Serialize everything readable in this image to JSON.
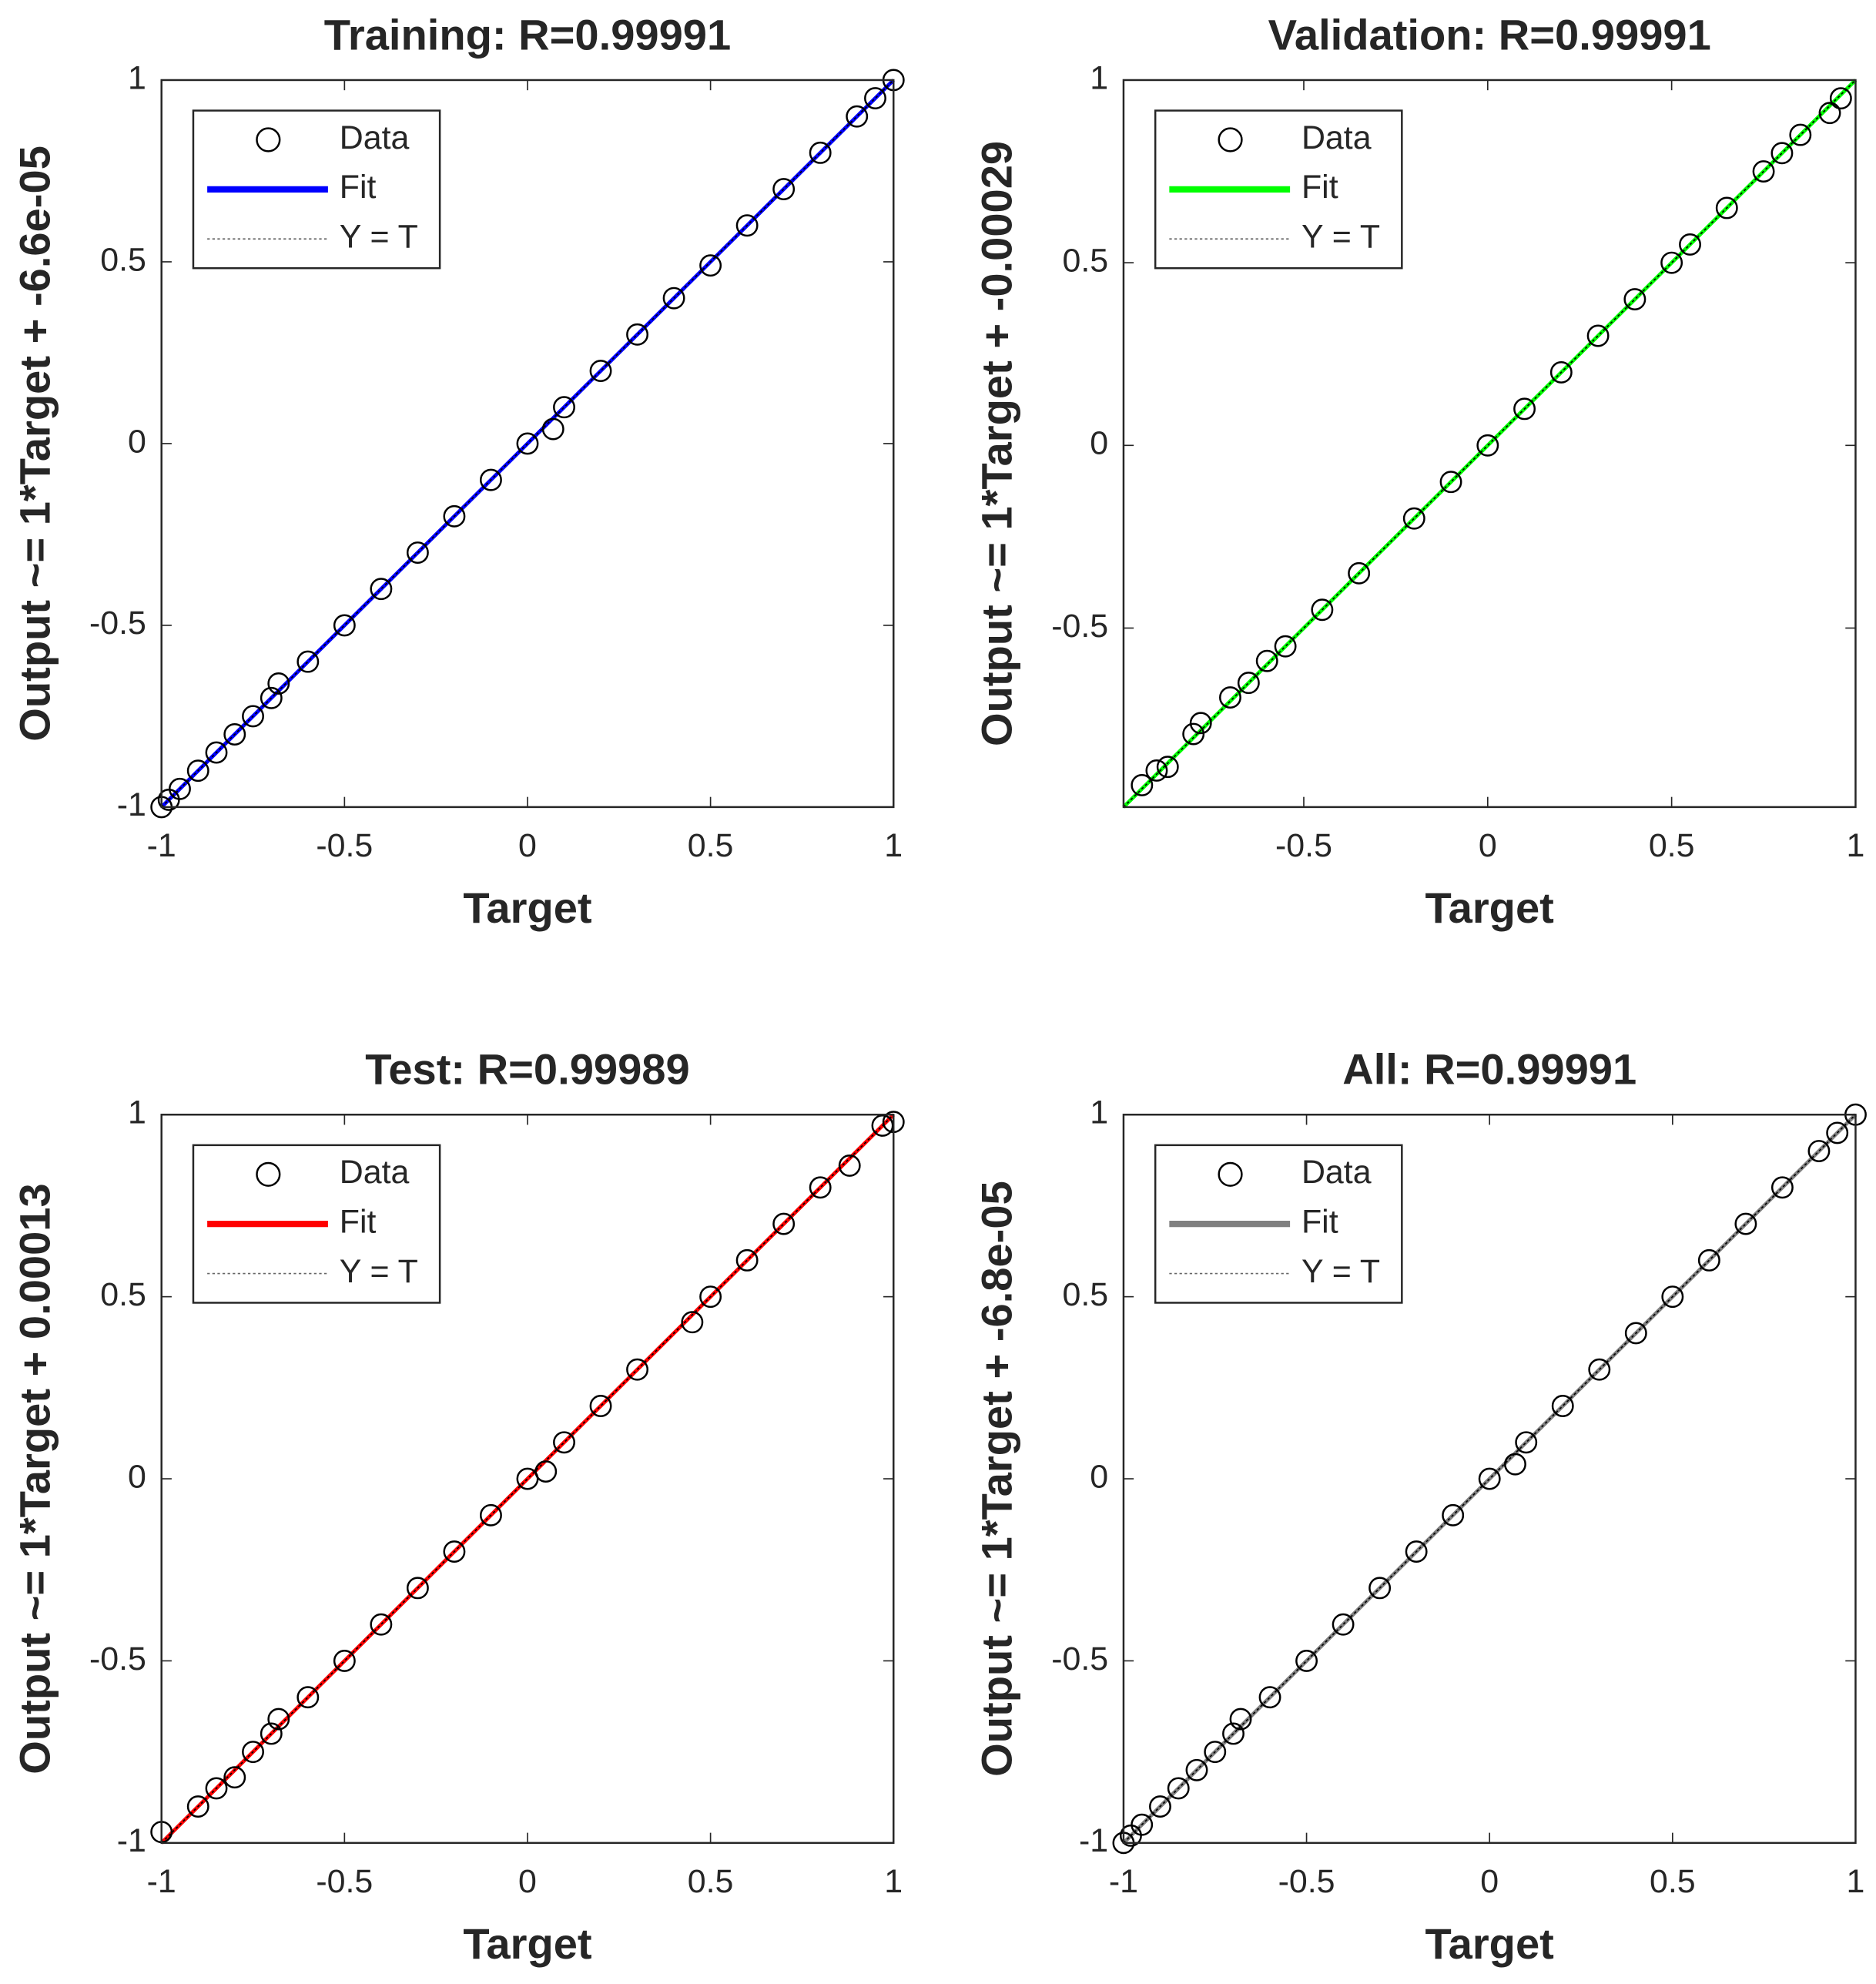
{
  "chart_data": [
    {
      "type": "scatter",
      "title": "Training: R=0.99991",
      "xlabel": "Target",
      "ylabel": "Output ~= 1*Target + -6.6e-05",
      "xlim": [
        -1,
        1
      ],
      "ylim": [
        -1,
        1
      ],
      "xticks": [
        -1,
        -0.5,
        0,
        0.5,
        1
      ],
      "yticks": [
        -1,
        -0.5,
        0,
        0.5,
        1
      ],
      "series": [
        {
          "name": "Data",
          "color": "#000000",
          "marker": "o",
          "x": [
            -1,
            -0.98,
            -0.95,
            -0.9,
            -0.85,
            -0.8,
            -0.75,
            -0.7,
            -0.68,
            -0.6,
            -0.5,
            -0.4,
            -0.3,
            -0.2,
            -0.1,
            0,
            0.07,
            0.1,
            0.2,
            0.3,
            0.4,
            0.5,
            0.6,
            0.7,
            0.8,
            0.9,
            0.95,
            1
          ],
          "values": [
            -1,
            -0.98,
            -0.95,
            -0.9,
            -0.85,
            -0.8,
            -0.75,
            -0.7,
            -0.66,
            -0.6,
            -0.5,
            -0.4,
            -0.3,
            -0.2,
            -0.1,
            0,
            0.04,
            0.1,
            0.2,
            0.3,
            0.4,
            0.49,
            0.6,
            0.7,
            0.8,
            0.9,
            0.95,
            1
          ]
        },
        {
          "name": "Fit",
          "color": "#0000ff",
          "linestyle": "solid",
          "x": [
            -1,
            1
          ],
          "values": [
            -1,
            1
          ]
        },
        {
          "name": "Y = T",
          "color": "#000000",
          "linestyle": "dotted",
          "x": [
            -1,
            1
          ],
          "values": [
            -1,
            1
          ]
        }
      ]
    },
    {
      "type": "scatter",
      "title": "Validation: R=0.99991",
      "xlabel": "Target",
      "ylabel": "Output ~= 1*Target + -0.00029",
      "xlim": [
        -0.99,
        1
      ],
      "ylim": [
        -0.99,
        1
      ],
      "xticks": [
        -0.5,
        0,
        0.5,
        1
      ],
      "yticks": [
        -0.5,
        0,
        0.5,
        1
      ],
      "series": [
        {
          "name": "Data",
          "color": "#000000",
          "marker": "o",
          "x": [
            -0.94,
            -0.9,
            -0.87,
            -0.8,
            -0.78,
            -0.7,
            -0.65,
            -0.6,
            -0.55,
            -0.45,
            -0.35,
            -0.2,
            -0.1,
            0,
            0.1,
            0.2,
            0.3,
            0.4,
            0.5,
            0.55,
            0.65,
            0.75,
            0.8,
            0.85,
            0.93,
            0.96
          ],
          "values": [
            -0.93,
            -0.89,
            -0.88,
            -0.79,
            -0.76,
            -0.69,
            -0.65,
            -0.59,
            -0.55,
            -0.45,
            -0.35,
            -0.2,
            -0.1,
            0,
            0.1,
            0.2,
            0.3,
            0.4,
            0.5,
            0.55,
            0.65,
            0.75,
            0.8,
            0.85,
            0.91,
            0.95
          ]
        },
        {
          "name": "Fit",
          "color": "#00ff00",
          "linestyle": "solid",
          "x": [
            -0.99,
            1
          ],
          "values": [
            -0.99,
            1
          ]
        },
        {
          "name": "Y = T",
          "color": "#000000",
          "linestyle": "dotted",
          "x": [
            -0.99,
            1
          ],
          "values": [
            -0.99,
            1
          ]
        }
      ]
    },
    {
      "type": "scatter",
      "title": "Test: R=0.99989",
      "xlabel": "Target",
      "ylabel": "Output ~= 1*Target + 0.00013",
      "xlim": [
        -1,
        1
      ],
      "ylim": [
        -1,
        1
      ],
      "xticks": [
        -1,
        -0.5,
        0,
        0.5,
        1
      ],
      "yticks": [
        -1,
        -0.5,
        0,
        0.5,
        1
      ],
      "series": [
        {
          "name": "Data",
          "color": "#000000",
          "marker": "o",
          "x": [
            -1,
            -0.9,
            -0.85,
            -0.8,
            -0.75,
            -0.7,
            -0.68,
            -0.6,
            -0.5,
            -0.4,
            -0.3,
            -0.2,
            -0.1,
            0,
            0.05,
            0.1,
            0.2,
            0.3,
            0.45,
            0.5,
            0.6,
            0.7,
            0.8,
            0.88,
            0.97,
            1
          ],
          "values": [
            -0.97,
            -0.9,
            -0.85,
            -0.82,
            -0.75,
            -0.7,
            -0.66,
            -0.6,
            -0.5,
            -0.4,
            -0.3,
            -0.2,
            -0.1,
            0,
            0.02,
            0.1,
            0.2,
            0.3,
            0.43,
            0.5,
            0.6,
            0.7,
            0.8,
            0.86,
            0.97,
            0.98
          ]
        },
        {
          "name": "Fit",
          "color": "#ff0000",
          "linestyle": "solid",
          "x": [
            -1,
            1
          ],
          "values": [
            -1,
            1
          ]
        },
        {
          "name": "Y = T",
          "color": "#000000",
          "linestyle": "dotted",
          "x": [
            -1,
            1
          ],
          "values": [
            -1,
            1
          ]
        }
      ]
    },
    {
      "type": "scatter",
      "title": "All: R=0.99991",
      "xlabel": "Target",
      "ylabel": "Output ~= 1*Target + -6.8e-05",
      "xlim": [
        -1,
        1
      ],
      "ylim": [
        -1,
        1
      ],
      "xticks": [
        -1,
        -0.5,
        0,
        0.5,
        1
      ],
      "yticks": [
        -1,
        -0.5,
        0,
        0.5,
        1
      ],
      "series": [
        {
          "name": "Data",
          "color": "#000000",
          "marker": "o",
          "x": [
            -1,
            -0.98,
            -0.95,
            -0.9,
            -0.85,
            -0.8,
            -0.75,
            -0.7,
            -0.68,
            -0.6,
            -0.5,
            -0.4,
            -0.3,
            -0.2,
            -0.1,
            0,
            0.07,
            0.1,
            0.2,
            0.3,
            0.4,
            0.5,
            0.6,
            0.7,
            0.8,
            0.9,
            0.95,
            1
          ],
          "values": [
            -1,
            -0.98,
            -0.95,
            -0.9,
            -0.85,
            -0.8,
            -0.75,
            -0.7,
            -0.66,
            -0.6,
            -0.5,
            -0.4,
            -0.3,
            -0.2,
            -0.1,
            0,
            0.04,
            0.1,
            0.2,
            0.3,
            0.4,
            0.5,
            0.6,
            0.7,
            0.8,
            0.9,
            0.95,
            1
          ]
        },
        {
          "name": "Fit",
          "color": "#808080",
          "linestyle": "solid",
          "x": [
            -1,
            1
          ],
          "values": [
            -1,
            1
          ]
        },
        {
          "name": "Y = T",
          "color": "#000000",
          "linestyle": "dotted",
          "x": [
            -1,
            1
          ],
          "values": [
            -1,
            1
          ]
        }
      ]
    }
  ]
}
